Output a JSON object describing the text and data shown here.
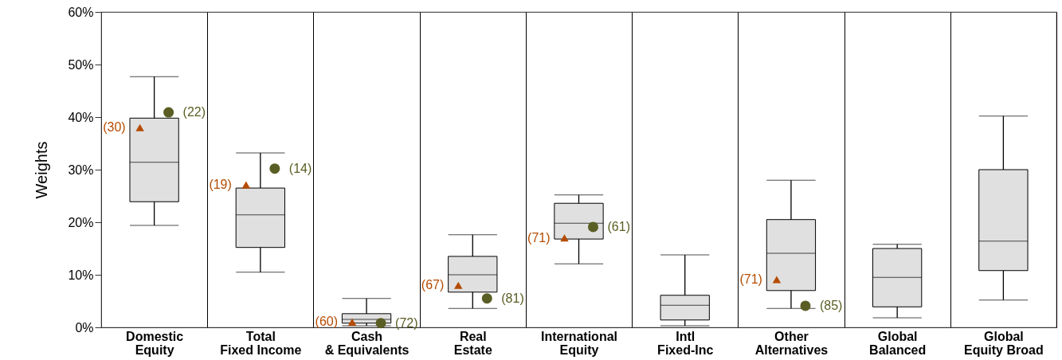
{
  "chart_data": {
    "type": "box",
    "ylabel": "Weights",
    "categories": [
      "Domestic\nEquity",
      "Total\nFixed Income",
      "Cash\n& Equivalents",
      "Real\nEstate",
      "International\nEquity",
      "Intl\nFixed-Inc",
      "Other\nAlternatives",
      "Global\nBalanced",
      "Global\nEquity Broad"
    ],
    "ylim": [
      0,
      60
    ],
    "yticks": [
      {
        "value": 0,
        "label": "0%"
      },
      {
        "value": 10,
        "label": "10%"
      },
      {
        "value": 20,
        "label": "20%"
      },
      {
        "value": 30,
        "label": "30%"
      },
      {
        "value": 40,
        "label": "40%"
      },
      {
        "value": 50,
        "label": "50%"
      },
      {
        "value": 60,
        "label": "60%"
      }
    ],
    "grid": "x",
    "series": [
      {
        "type": "box",
        "color": "#e0e0e0",
        "boxes": [
          {
            "low": 19.4,
            "q1": 23.9,
            "median": 31.4,
            "q3": 39.8,
            "high": 47.7
          },
          {
            "low": 10.5,
            "q1": 15.2,
            "median": 21.4,
            "q3": 26.5,
            "high": 33.2
          },
          {
            "low": 0.3,
            "q1": 0.8,
            "median": 1.5,
            "q3": 2.6,
            "high": 5.5
          },
          {
            "low": 3.6,
            "q1": 6.7,
            "median": 10.0,
            "q3": 13.5,
            "high": 17.6
          },
          {
            "low": 12.1,
            "q1": 16.8,
            "median": 19.8,
            "q3": 23.6,
            "high": 25.2
          },
          {
            "low": 0.3,
            "q1": 1.4,
            "median": 4.2,
            "q3": 6.1,
            "high": 13.8
          },
          {
            "low": 3.6,
            "q1": 7.0,
            "median": 14.1,
            "q3": 20.5,
            "high": 28.0
          },
          {
            "low": 1.8,
            "q1": 3.9,
            "median": 9.5,
            "q3": 15.0,
            "high": 15.8
          },
          {
            "low": 5.2,
            "q1": 10.8,
            "median": 16.4,
            "q3": 30.0,
            "high": 40.2
          }
        ]
      },
      {
        "type": "scatter",
        "marker": "triangle",
        "color": "#b54b00",
        "x": [
          "Domestic\nEquity",
          "Total\nFixed Income",
          "Cash\n& Equivalents",
          "Real\nEstate",
          "International\nEquity",
          "Other\nAlternatives"
        ],
        "values": [
          38.0,
          27.1,
          1.0,
          8.0,
          17.0,
          9.1
        ]
      },
      {
        "type": "scatter",
        "marker": "circle",
        "color": "#5b5e24",
        "x": [
          "Domestic\nEquity",
          "Total\nFixed Income",
          "Cash\n& Equivalents",
          "Real\nEstate",
          "International\nEquity",
          "Other\nAlternatives"
        ],
        "values": [
          40.9,
          30.2,
          0.8,
          5.5,
          19.1,
          4.1
        ]
      }
    ],
    "annotations": [
      "(30)",
      "(19)",
      "(60)",
      "(67)",
      "(71)",
      "(71)",
      "(22)",
      "(14)",
      "(72)",
      "(81)",
      "(61)",
      "(85)"
    ]
  }
}
